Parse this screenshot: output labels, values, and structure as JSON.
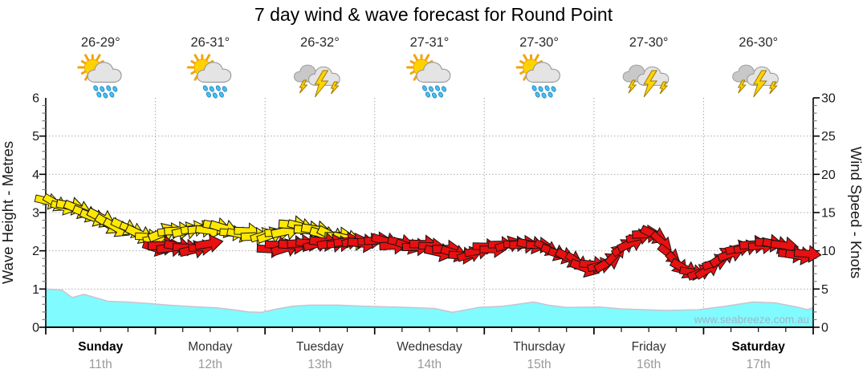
{
  "title": "7 day wind & wave forecast for Round Point",
  "watermark": "www.seabreeze.com.au",
  "colors": {
    "wind_yellow": "#ffe800",
    "wind_red": "#e81010",
    "arrow_outline": "#151515",
    "wave_fill": "#80fbff",
    "wave_stroke": "#cdc2cd",
    "grid": "#aaaaaa",
    "axis": "#000000",
    "tick_minor": "#808080",
    "text": "#1a1a1a",
    "temp_text": "#2b2b2b",
    "weekday_text": "#333333",
    "weekday_bold_text": "#000000",
    "date_text": "#9a9a9a",
    "watermark_text": "#9fb6c4",
    "sun": "#ffd200",
    "ray": "#f2a40c",
    "cloud_light": "#e4e4e4",
    "cloud_dark": "#c8c8c8",
    "cloud_edge": "#9a9a9a",
    "drop": "#45c0f5",
    "drop_edge": "#1d7fb5",
    "bolt": "#ffd400",
    "bolt_edge": "#a07800"
  },
  "days": [
    {
      "weekday": "Sunday",
      "date": "11th",
      "bold": true,
      "temp": "26-29°",
      "icon": "sun-cloud-rain"
    },
    {
      "weekday": "Monday",
      "date": "12th",
      "bold": false,
      "temp": "26-31°",
      "icon": "sun-cloud-rain"
    },
    {
      "weekday": "Tuesday",
      "date": "13th",
      "bold": false,
      "temp": "26-32°",
      "icon": "storm"
    },
    {
      "weekday": "Wednesday",
      "date": "14th",
      "bold": false,
      "temp": "27-31°",
      "icon": "sun-cloud-rain"
    },
    {
      "weekday": "Thursday",
      "date": "15th",
      "bold": false,
      "temp": "27-30°",
      "icon": "sun-cloud-rain"
    },
    {
      "weekday": "Friday",
      "date": "16th",
      "bold": false,
      "temp": "27-30°",
      "icon": "storm"
    },
    {
      "weekday": "Saturday",
      "date": "17th",
      "bold": true,
      "temp": "26-30°",
      "icon": "storm"
    }
  ],
  "chart_data": {
    "type": "area",
    "subtype": "wind-arrows-and-wave-area",
    "title": "7 day wind & wave forecast for Round Point",
    "x_axis": {
      "range_days": [
        0,
        7
      ],
      "minor_ticks_per_day": 4,
      "day_labels": [
        "Sunday",
        "Monday",
        "Tuesday",
        "Wednesday",
        "Thursday",
        "Friday",
        "Saturday"
      ],
      "date_labels": [
        "11th",
        "12th",
        "13th",
        "14th",
        "15th",
        "16th",
        "17th"
      ]
    },
    "y_left": {
      "label": "Wave Height - Metres",
      "min": 0,
      "max": 6,
      "ticks": [
        0,
        1,
        2,
        3,
        4,
        5,
        6
      ],
      "minor_step": 0.2,
      "gridlines": [
        1,
        2,
        3,
        4,
        5
      ]
    },
    "y_right": {
      "label": "Wind Speed - Knots",
      "min": 0,
      "max": 30,
      "ticks": [
        0,
        5,
        10,
        15,
        20,
        25,
        30
      ],
      "minor_step": 1
    },
    "grid": true,
    "wave_series": {
      "name": "wave-height-metres",
      "points": [
        [
          0.0,
          1.0
        ],
        [
          0.15,
          0.97
        ],
        [
          0.24,
          0.78
        ],
        [
          0.35,
          0.86
        ],
        [
          0.46,
          0.77
        ],
        [
          0.57,
          0.68
        ],
        [
          0.75,
          0.66
        ],
        [
          0.94,
          0.62
        ],
        [
          1.12,
          0.58
        ],
        [
          1.34,
          0.54
        ],
        [
          1.56,
          0.51
        ],
        [
          1.71,
          0.46
        ],
        [
          1.85,
          0.4
        ],
        [
          1.97,
          0.39
        ],
        [
          2.11,
          0.48
        ],
        [
          2.25,
          0.55
        ],
        [
          2.4,
          0.58
        ],
        [
          2.66,
          0.58
        ],
        [
          2.91,
          0.55
        ],
        [
          3.17,
          0.53
        ],
        [
          3.4,
          0.51
        ],
        [
          3.55,
          0.49
        ],
        [
          3.71,
          0.39
        ],
        [
          3.95,
          0.52
        ],
        [
          4.17,
          0.55
        ],
        [
          4.45,
          0.66
        ],
        [
          4.6,
          0.57
        ],
        [
          4.75,
          0.52
        ],
        [
          5.05,
          0.53
        ],
        [
          5.25,
          0.48
        ],
        [
          5.65,
          0.44
        ],
        [
          5.95,
          0.46
        ],
        [
          6.2,
          0.55
        ],
        [
          6.45,
          0.66
        ],
        [
          6.65,
          0.64
        ],
        [
          6.85,
          0.53
        ],
        [
          6.95,
          0.46
        ],
        [
          7.0,
          0.52
        ]
      ]
    },
    "wind_series": [
      {
        "name": "wind-knots-yellow",
        "color": "#ffe800",
        "points": [
          [
            0.02,
            16.8
          ],
          [
            0.2,
            15.8
          ],
          [
            0.4,
            14.6
          ],
          [
            0.6,
            13.4
          ],
          [
            0.8,
            12.4
          ],
          [
            1.0,
            11.7
          ],
          [
            1.15,
            12.4
          ],
          [
            1.35,
            13.0
          ],
          [
            1.55,
            12.9
          ],
          [
            1.75,
            12.5
          ],
          [
            1.95,
            11.9
          ],
          [
            2.1,
            12.6
          ],
          [
            2.3,
            13.2
          ],
          [
            2.5,
            12.3
          ],
          [
            2.65,
            11.6
          ],
          [
            2.82,
            11.4
          ]
        ]
      },
      {
        "name": "wind-knots-red-monday",
        "color": "#e81010",
        "points": [
          [
            1.0,
            10.6
          ],
          [
            1.25,
            10.2
          ],
          [
            1.5,
            10.6
          ]
        ]
      },
      {
        "name": "wind-knots-red",
        "color": "#e81010",
        "points": [
          [
            2.05,
            10.3
          ],
          [
            2.25,
            10.7
          ],
          [
            2.45,
            10.9
          ],
          [
            2.65,
            11.1
          ],
          [
            2.85,
            11.2
          ],
          [
            3.05,
            11.2
          ],
          [
            3.25,
            10.9
          ],
          [
            3.45,
            10.5
          ],
          [
            3.65,
            9.9
          ],
          [
            3.8,
            9.6
          ],
          [
            4.0,
            10.2
          ],
          [
            4.2,
            10.6
          ],
          [
            4.4,
            10.8
          ],
          [
            4.6,
            10.2
          ],
          [
            4.8,
            9.0
          ],
          [
            4.95,
            7.8
          ],
          [
            5.1,
            8.4
          ],
          [
            5.3,
            10.6
          ],
          [
            5.5,
            12.4
          ],
          [
            5.65,
            10.6
          ],
          [
            5.8,
            7.8
          ],
          [
            5.92,
            7.1
          ],
          [
            6.05,
            7.8
          ],
          [
            6.2,
            9.3
          ],
          [
            6.4,
            10.6
          ],
          [
            6.6,
            10.9
          ],
          [
            6.75,
            10.3
          ],
          [
            6.88,
            9.5
          ],
          [
            6.98,
            9.7
          ]
        ]
      }
    ]
  }
}
